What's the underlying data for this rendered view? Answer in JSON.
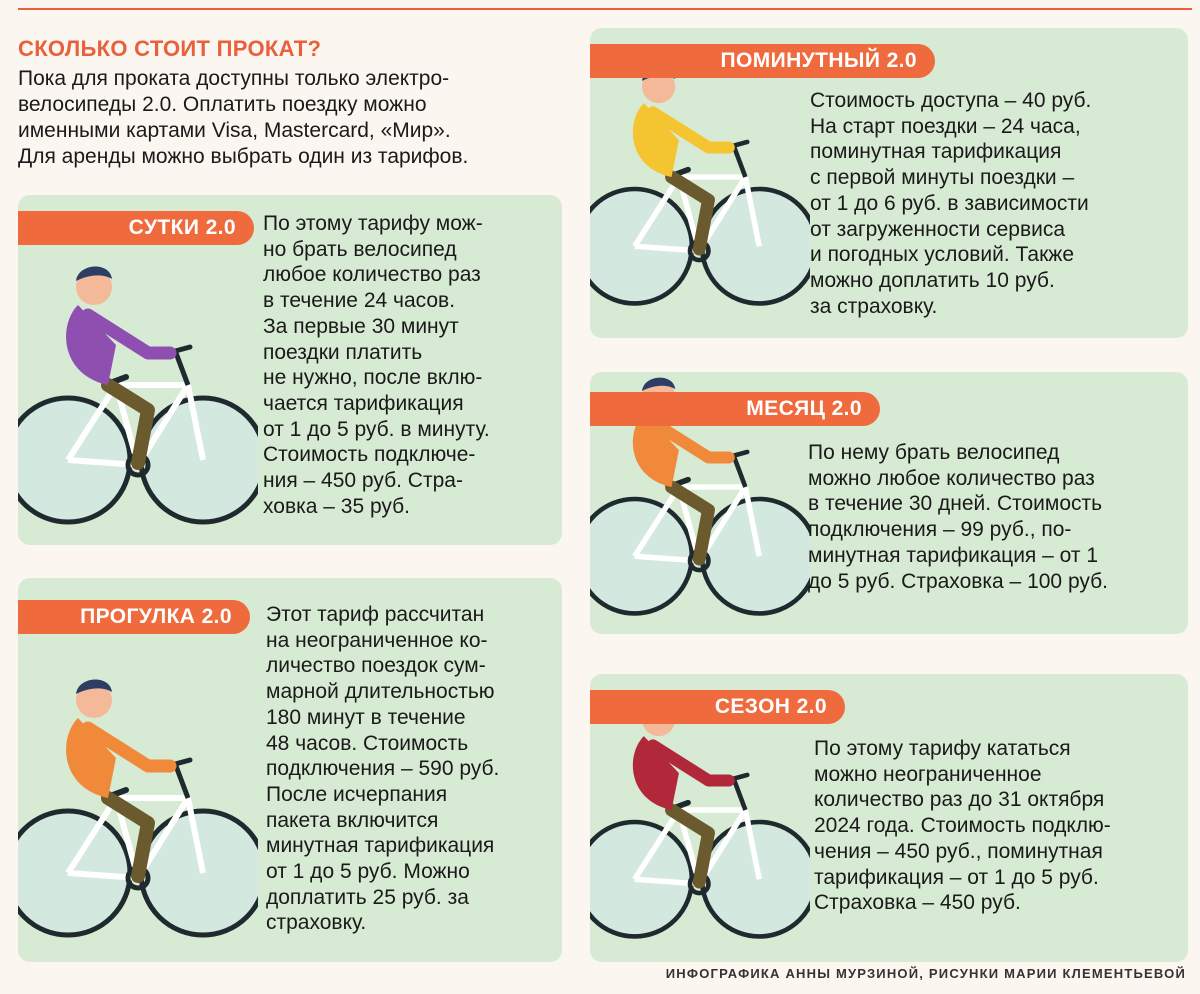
{
  "intro": {
    "title": "СКОЛЬКО СТОИТ ПРОКАТ?",
    "lines": [
      "Пока для проката доступны только электро-",
      "велосипеды 2.0. Оплатить поездку можно",
      "именными картами Visa, Mastercard, «Мир».",
      "Для аренды можно выбрать один из тарифов."
    ]
  },
  "tariffs": {
    "sutki": {
      "label": "СУТКИ 2.0",
      "lines": [
        "По этому тарифу мож-",
        "но брать велосипед",
        "любое количество раз",
        "в течение 24 часов.",
        "За первые 30 минут",
        "поездки платить",
        "не нужно, после вклю-",
        "чается тарификация",
        "от 1 до 5 руб. в минуту.",
        "Стоимость подключе-",
        "ния – 450 руб. Стра-",
        "ховка – 35 руб."
      ]
    },
    "progulka": {
      "label": "ПРОГУЛКА 2.0",
      "lines": [
        "Этот тариф рассчитан",
        "на неограниченное ко-",
        "личество поездок сум-",
        "марной длительностью",
        "180 минут в течение",
        "48 часов. Стоимость",
        "подключения – 590 руб.",
        "После исчерпания",
        "пакета включится",
        "минутная тарификация",
        "от 1 до 5 руб. Можно",
        "доплатить 25 руб. за",
        "страховку."
      ]
    },
    "minutny": {
      "label": "ПОМИНУТНЫЙ 2.0",
      "lines": [
        "Стоимость доступа – 40 руб.",
        "На старт поездки – 24 часа,",
        "поминутная тарификация",
        "с первой минуты поездки –",
        "от 1 до 6 руб. в зависимости",
        "от загруженности сервиса",
        "и погодных условий. Также",
        "можно доплатить 10 руб.",
        "за страховку."
      ]
    },
    "mesyats": {
      "label": "МЕСЯЦ 2.0",
      "lines": [
        "По нему брать велосипед",
        "можно любое количество раз",
        "в течение 30 дней. Стоимость",
        "подключения – 99 руб., по-",
        "минутная тарификация – от 1",
        "до 5 руб. Страховка – 100 руб."
      ]
    },
    "sezon": {
      "label": "СЕЗОН 2.0",
      "lines": [
        "По этому тарифу кататься",
        "можно неограниченное",
        "количество раз до 31 октября",
        "2024 года. Стоимость подклю-",
        "чения – 450 руб., поминутная",
        "тарификация – от 1 до 5 руб.",
        "Страховка – 450 руб."
      ]
    }
  },
  "credit": "ИНФОГРАФИКА АННЫ МУРЗИНОЙ, РИСУНКИ МАРИИ КЛЕМЕНТЬЕВОЙ",
  "colors": {
    "accent": "#ef6a3c",
    "card_background": "#d7ead3",
    "page_background": "#fbf6ef",
    "rider_sutki": "#8e4fb1",
    "rider_progulka": "#f08a3a",
    "rider_minutny": "#f5c431",
    "rider_mesyats": "#f08a3a",
    "rider_sezon": "#b1283a"
  }
}
